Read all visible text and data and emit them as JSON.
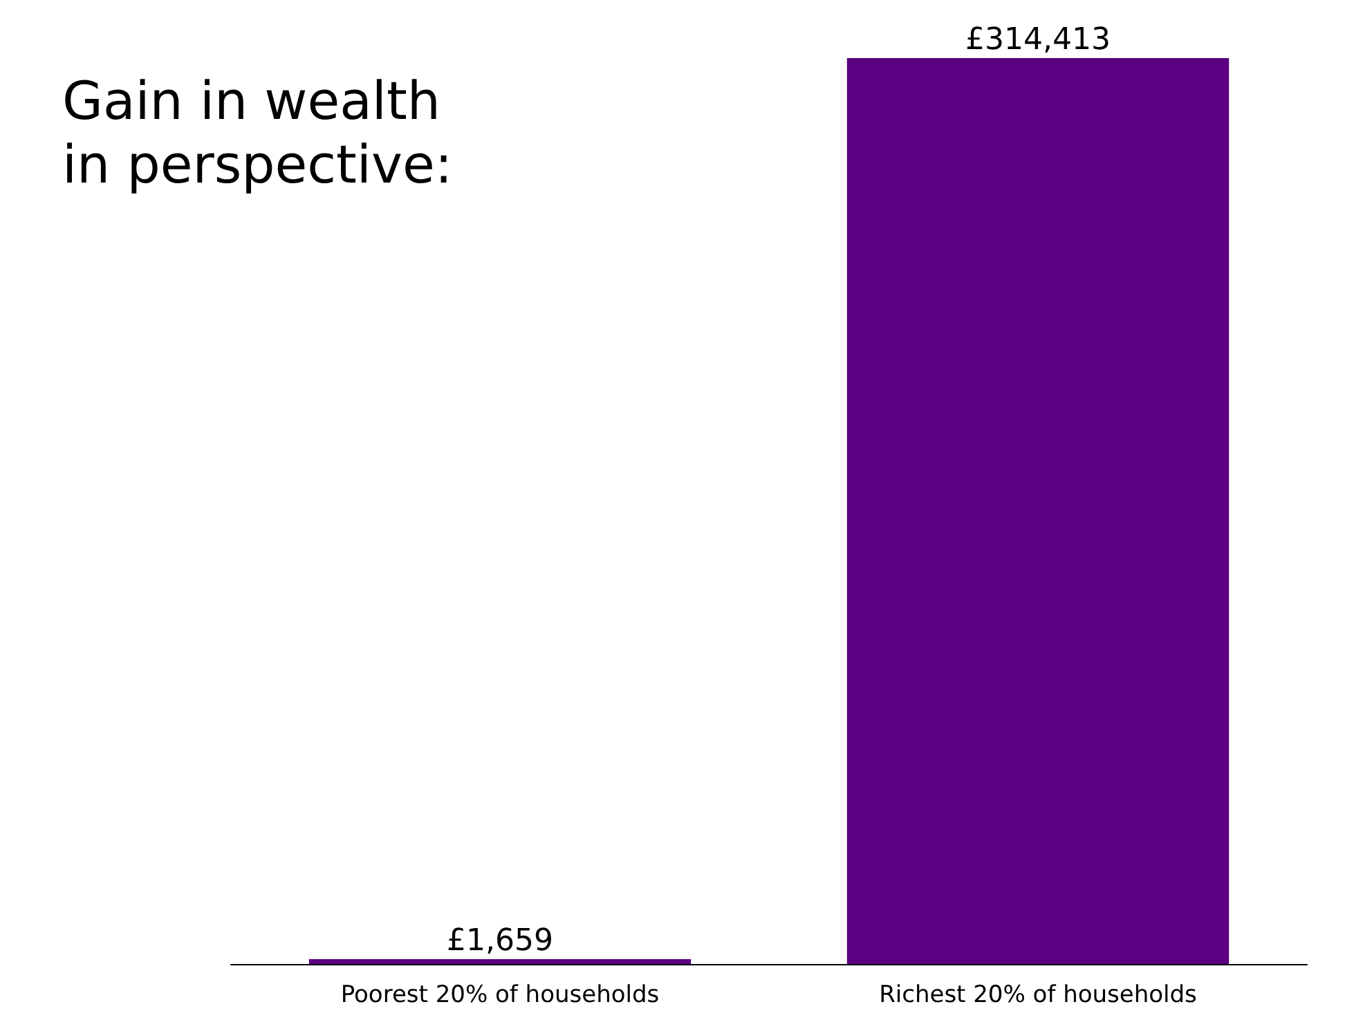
{
  "chart_data": {
    "type": "bar",
    "title": "Gain in wealth in perspective:",
    "categories": [
      "Poorest 20% of households",
      "Richest 20% of households"
    ],
    "values": [
      1659,
      314413
    ],
    "value_labels": [
      "£1,659",
      "£314,413"
    ],
    "color": "#5a0080"
  }
}
